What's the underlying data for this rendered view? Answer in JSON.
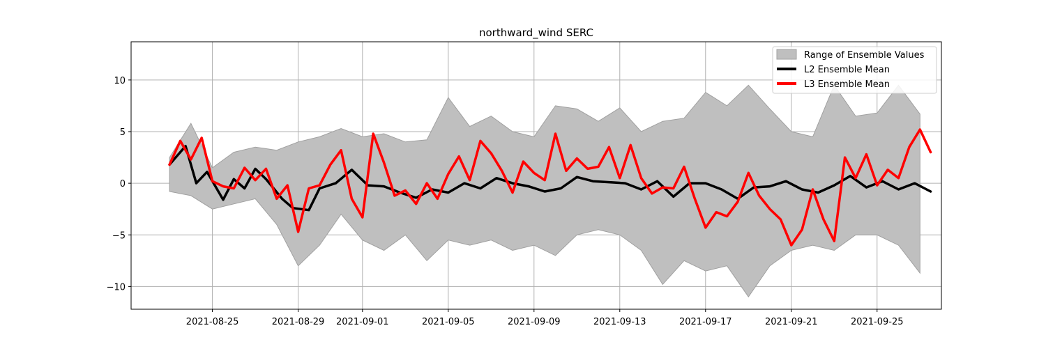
{
  "chart_data": {
    "type": "line",
    "title": "northward_wind SERC",
    "xlabel": "",
    "ylabel": "",
    "x_ticks": [
      "2021-08-25",
      "2021-08-29",
      "2021-09-01",
      "2021-09-05",
      "2021-09-09",
      "2021-09-13",
      "2021-09-17",
      "2021-09-21",
      "2021-09-25"
    ],
    "y_ticks": [
      -10,
      -5,
      0,
      5,
      10
    ],
    "ylim": [
      -12.2,
      13.7
    ],
    "xlim": [
      "2021-08-21T05:00",
      "2021-09-28T00:00"
    ],
    "grid": true,
    "legend_position": "top-right",
    "legend": [
      "Range of Ensemble Values",
      "L2 Ensemble Mean",
      "L3 Ensemble Mean"
    ],
    "colors": {
      "range": "#bfbfbf",
      "range_edge": "#a0a0a0",
      "l2": "#000000",
      "l3": "#ff0000"
    },
    "range": {
      "name": "Range of Ensemble Values",
      "x": [
        "2021-08-23T00:00",
        "2021-08-24T00:00",
        "2021-08-25T00:00",
        "2021-08-26T00:00",
        "2021-08-27T00:00",
        "2021-08-28T00:00",
        "2021-08-29T00:00",
        "2021-08-30T00:00",
        "2021-08-31T00:00",
        "2021-09-01T00:00",
        "2021-09-02T00:00",
        "2021-09-03T00:00",
        "2021-09-04T00:00",
        "2021-09-05T00:00",
        "2021-09-06T00:00",
        "2021-09-07T00:00",
        "2021-09-08T00:00",
        "2021-09-09T00:00",
        "2021-09-10T00:00",
        "2021-09-11T00:00",
        "2021-09-12T00:00",
        "2021-09-13T00:00",
        "2021-09-14T00:00",
        "2021-09-15T00:00",
        "2021-09-16T00:00",
        "2021-09-17T00:00",
        "2021-09-18T00:00",
        "2021-09-19T00:00",
        "2021-09-20T00:00",
        "2021-09-21T00:00",
        "2021-09-22T00:00",
        "2021-09-23T00:00",
        "2021-09-24T00:00",
        "2021-09-25T00:00",
        "2021-09-26T00:00",
        "2021-09-27T00:00"
      ],
      "upper": [
        2.5,
        5.8,
        1.5,
        3.0,
        3.5,
        3.2,
        4.0,
        4.5,
        5.3,
        4.5,
        4.8,
        4.0,
        4.2,
        8.3,
        5.5,
        6.5,
        5.0,
        4.5,
        7.5,
        7.2,
        6.0,
        7.3,
        5.0,
        6.0,
        6.3,
        8.8,
        7.5,
        9.5,
        7.2,
        5.0,
        4.5,
        9.5,
        6.5,
        6.8,
        9.5,
        6.7
      ],
      "lower": [
        -0.8,
        -1.2,
        -2.5,
        -2.0,
        -1.5,
        -4.0,
        -8.0,
        -6.0,
        -3.0,
        -5.5,
        -6.5,
        -5.0,
        -7.5,
        -5.5,
        -6.0,
        -5.5,
        -6.5,
        -6.0,
        -7.0,
        -5.0,
        -4.5,
        -5.0,
        -6.5,
        -9.8,
        -7.5,
        -8.5,
        -8.0,
        -11.0,
        -8.0,
        -6.5,
        -6.0,
        -6.5,
        -5.0,
        -5.0,
        -6.0,
        -8.7
      ]
    },
    "series": [
      {
        "name": "L2 Ensemble Mean",
        "x": [
          "2021-08-23T00:00",
          "2021-08-23T18:00",
          "2021-08-24T06:00",
          "2021-08-24T18:00",
          "2021-08-25T12:00",
          "2021-08-26T00:00",
          "2021-08-26T12:00",
          "2021-08-27T00:00",
          "2021-08-27T12:00",
          "2021-08-28T06:00",
          "2021-08-28T18:00",
          "2021-08-29T12:00",
          "2021-08-30T00:00",
          "2021-08-30T18:00",
          "2021-08-31T12:00",
          "2021-09-01T06:00",
          "2021-09-02T00:00",
          "2021-09-02T18:00",
          "2021-09-03T12:00",
          "2021-09-04T06:00",
          "2021-09-05T00:00",
          "2021-09-05T18:00",
          "2021-09-06T12:00",
          "2021-09-07T06:00",
          "2021-09-08T00:00",
          "2021-09-08T18:00",
          "2021-09-09T12:00",
          "2021-09-10T06:00",
          "2021-09-11T00:00",
          "2021-09-11T18:00",
          "2021-09-12T12:00",
          "2021-09-13T06:00",
          "2021-09-14T00:00",
          "2021-09-14T18:00",
          "2021-09-15T12:00",
          "2021-09-16T06:00",
          "2021-09-17T00:00",
          "2021-09-17T18:00",
          "2021-09-18T12:00",
          "2021-09-19T06:00",
          "2021-09-20T00:00",
          "2021-09-20T18:00",
          "2021-09-21T12:00",
          "2021-09-22T06:00",
          "2021-09-23T00:00",
          "2021-09-23T18:00",
          "2021-09-24T12:00",
          "2021-09-25T06:00",
          "2021-09-26T00:00",
          "2021-09-26T18:00",
          "2021-09-27T12:00"
        ],
        "y": [
          1.8,
          3.6,
          0.0,
          1.1,
          -1.6,
          0.4,
          -0.5,
          1.4,
          0.4,
          -1.5,
          -2.4,
          -2.6,
          -0.5,
          0.0,
          1.3,
          -0.2,
          -0.3,
          -0.9,
          -1.4,
          -0.6,
          -0.9,
          0.0,
          -0.5,
          0.5,
          0.0,
          -0.3,
          -0.8,
          -0.5,
          0.6,
          0.2,
          0.1,
          0.0,
          -0.6,
          0.2,
          -1.3,
          0.0,
          0.0,
          -0.6,
          -1.5,
          -0.4,
          -0.3,
          0.2,
          -0.6,
          -0.9,
          -0.2,
          0.7,
          -0.4,
          0.2,
          -0.6,
          0.0,
          -0.8
        ]
      },
      {
        "name": "L3 Ensemble Mean",
        "x": [
          "2021-08-23T00:00",
          "2021-08-23T12:00",
          "2021-08-24T00:00",
          "2021-08-24T12:00",
          "2021-08-25T00:00",
          "2021-08-25T12:00",
          "2021-08-26T00:00",
          "2021-08-26T12:00",
          "2021-08-27T00:00",
          "2021-08-27T12:00",
          "2021-08-28T00:00",
          "2021-08-28T12:00",
          "2021-08-29T00:00",
          "2021-08-29T12:00",
          "2021-08-30T00:00",
          "2021-08-30T12:00",
          "2021-08-31T00:00",
          "2021-08-31T12:00",
          "2021-09-01T00:00",
          "2021-09-01T12:00",
          "2021-09-02T00:00",
          "2021-09-02T12:00",
          "2021-09-03T00:00",
          "2021-09-03T12:00",
          "2021-09-04T00:00",
          "2021-09-04T12:00",
          "2021-09-05T00:00",
          "2021-09-05T12:00",
          "2021-09-06T00:00",
          "2021-09-06T12:00",
          "2021-09-07T00:00",
          "2021-09-07T12:00",
          "2021-09-08T00:00",
          "2021-09-08T12:00",
          "2021-09-09T00:00",
          "2021-09-09T12:00",
          "2021-09-10T00:00",
          "2021-09-10T12:00",
          "2021-09-11T00:00",
          "2021-09-11T12:00",
          "2021-09-12T00:00",
          "2021-09-12T12:00",
          "2021-09-13T00:00",
          "2021-09-13T12:00",
          "2021-09-14T00:00",
          "2021-09-14T12:00",
          "2021-09-15T00:00",
          "2021-09-15T12:00",
          "2021-09-16T00:00",
          "2021-09-16T12:00",
          "2021-09-17T00:00",
          "2021-09-17T12:00",
          "2021-09-18T00:00",
          "2021-09-18T12:00",
          "2021-09-19T00:00",
          "2021-09-19T12:00",
          "2021-09-20T00:00",
          "2021-09-20T12:00",
          "2021-09-21T00:00",
          "2021-09-21T12:00",
          "2021-09-22T00:00",
          "2021-09-22T12:00",
          "2021-09-23T00:00",
          "2021-09-23T12:00",
          "2021-09-24T00:00",
          "2021-09-24T12:00",
          "2021-09-25T00:00",
          "2021-09-25T12:00",
          "2021-09-26T00:00",
          "2021-09-26T12:00",
          "2021-09-27T00:00",
          "2021-09-27T12:00"
        ],
        "y": [
          1.8,
          4.1,
          2.3,
          4.4,
          0.2,
          -0.3,
          -0.5,
          1.5,
          0.3,
          1.4,
          -1.5,
          -0.2,
          -4.7,
          -0.5,
          -0.2,
          1.8,
          3.2,
          -1.5,
          -3.3,
          4.8,
          2.0,
          -1.2,
          -0.7,
          -2.0,
          0.0,
          -1.5,
          0.9,
          2.6,
          0.3,
          4.1,
          2.9,
          1.2,
          -0.9,
          2.1,
          1.0,
          0.3,
          4.8,
          1.2,
          2.4,
          1.4,
          1.6,
          3.5,
          0.5,
          3.7,
          0.5,
          -1.0,
          -0.4,
          -0.5,
          1.6,
          -1.5,
          -4.3,
          -2.8,
          -3.2,
          -1.8,
          1.0,
          -1.2,
          -2.5,
          -3.5,
          -6.0,
          -4.5,
          -0.6,
          -3.5,
          -5.6,
          2.5,
          0.5,
          2.8,
          -0.2,
          1.3,
          0.5,
          3.5,
          5.2,
          3.0
        ]
      }
    ]
  }
}
